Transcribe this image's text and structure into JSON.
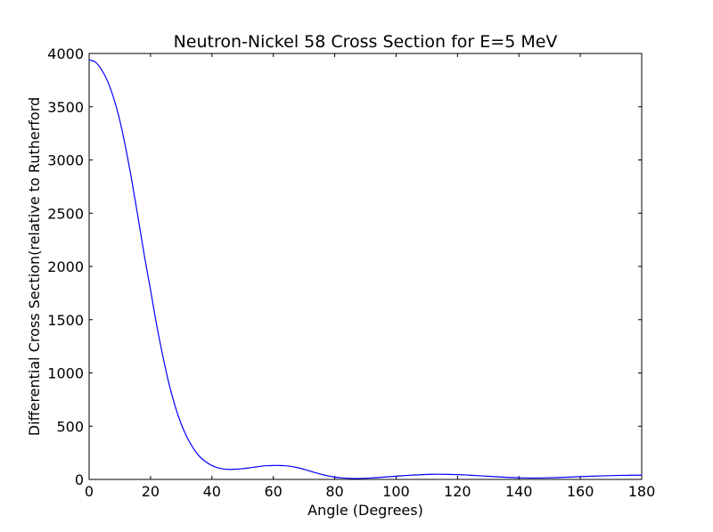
{
  "chart_data": {
    "type": "line",
    "title": "Neutron-Nickel 58 Cross Section for E=5 MeV",
    "xlabel": "Angle (Degrees)",
    "ylabel": "Differential Cross Section(relative to Rutherford",
    "xlim": [
      0,
      180
    ],
    "ylim": [
      0,
      4000
    ],
    "x_ticks": [
      0,
      20,
      40,
      60,
      80,
      100,
      120,
      140,
      160,
      180
    ],
    "y_ticks": [
      0,
      500,
      1000,
      1500,
      2000,
      2500,
      3000,
      3500,
      4000
    ],
    "x_tick_labels": [
      "0",
      "20",
      "40",
      "60",
      "80",
      "100",
      "120",
      "140",
      "160",
      "180"
    ],
    "y_tick_labels": [
      "0",
      "500",
      "1000",
      "1500",
      "2000",
      "2500",
      "3000",
      "3500",
      "4000"
    ],
    "grid": false,
    "series": [
      {
        "color": "#0000ff",
        "x": [
          0,
          2,
          4,
          6,
          8,
          10,
          12,
          14,
          16,
          18,
          20,
          22,
          24,
          26,
          28,
          30,
          32,
          34,
          36,
          38,
          40,
          42,
          44,
          46,
          48,
          50,
          52,
          54,
          56,
          58,
          60,
          62,
          64,
          66,
          68,
          70,
          72,
          74,
          76,
          78,
          80,
          82,
          84,
          86,
          88,
          90,
          92,
          94,
          96,
          98,
          100,
          104,
          108,
          112,
          116,
          120,
          124,
          128,
          132,
          136,
          140,
          144,
          148,
          152,
          156,
          160,
          164,
          168,
          172,
          176,
          180
        ],
        "y": [
          3940,
          3920,
          3850,
          3740,
          3580,
          3370,
          3100,
          2790,
          2450,
          2100,
          1780,
          1450,
          1160,
          900,
          690,
          520,
          390,
          290,
          215,
          165,
          130,
          108,
          97,
          94,
          96,
          101,
          108,
          116,
          124,
          129,
          131,
          131,
          128,
          121,
          110,
          95,
          78,
          61,
          45,
          32,
          22,
          15,
          11,
          9,
          9,
          11,
          14,
          18,
          22,
          26,
          30,
          38,
          44,
          48,
          48,
          45,
          40,
          33,
          26,
          20,
          15,
          13,
          14,
          17,
          21,
          26,
          30,
          34,
          37,
          39,
          40
        ]
      }
    ]
  }
}
